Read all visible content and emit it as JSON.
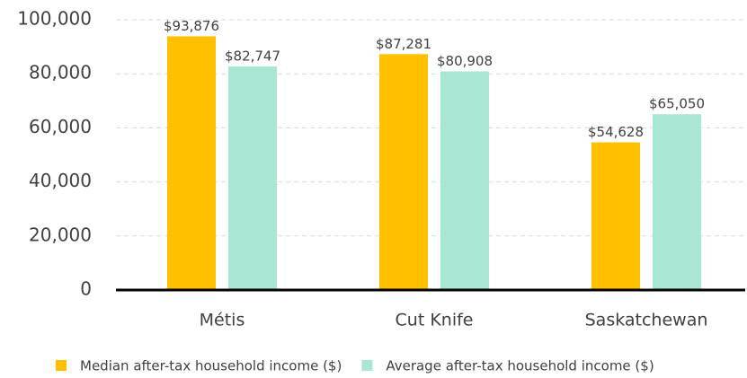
{
  "chart_data": {
    "type": "bar",
    "categories": [
      "Métis",
      "Cut Knife",
      "Saskatchewan"
    ],
    "series": [
      {
        "name": "Median after-tax household income ($)",
        "color": "#ffc000",
        "values": [
          93876,
          87281,
          54628
        ],
        "value_labels": [
          "$93,876",
          "$87,281",
          "$54,628"
        ]
      },
      {
        "name": "Average after-tax household income ($)",
        "color": "#a9e6d3",
        "values": [
          82747,
          80908,
          65050
        ],
        "value_labels": [
          "$82,747",
          "$80,908",
          "$65,050"
        ]
      }
    ],
    "ylim": [
      0,
      100000
    ],
    "yticks": [
      0,
      {
        "value": 20000,
        "label": "20,000"
      },
      {
        "value": 40000,
        "label": "40,000"
      },
      {
        "value": 60000,
        "label": "60,000"
      },
      {
        "value": 80000,
        "label": "80,000"
      },
      {
        "value": 100000,
        "label": "100,000"
      }
    ],
    "grid": true,
    "legend": "bottom"
  }
}
